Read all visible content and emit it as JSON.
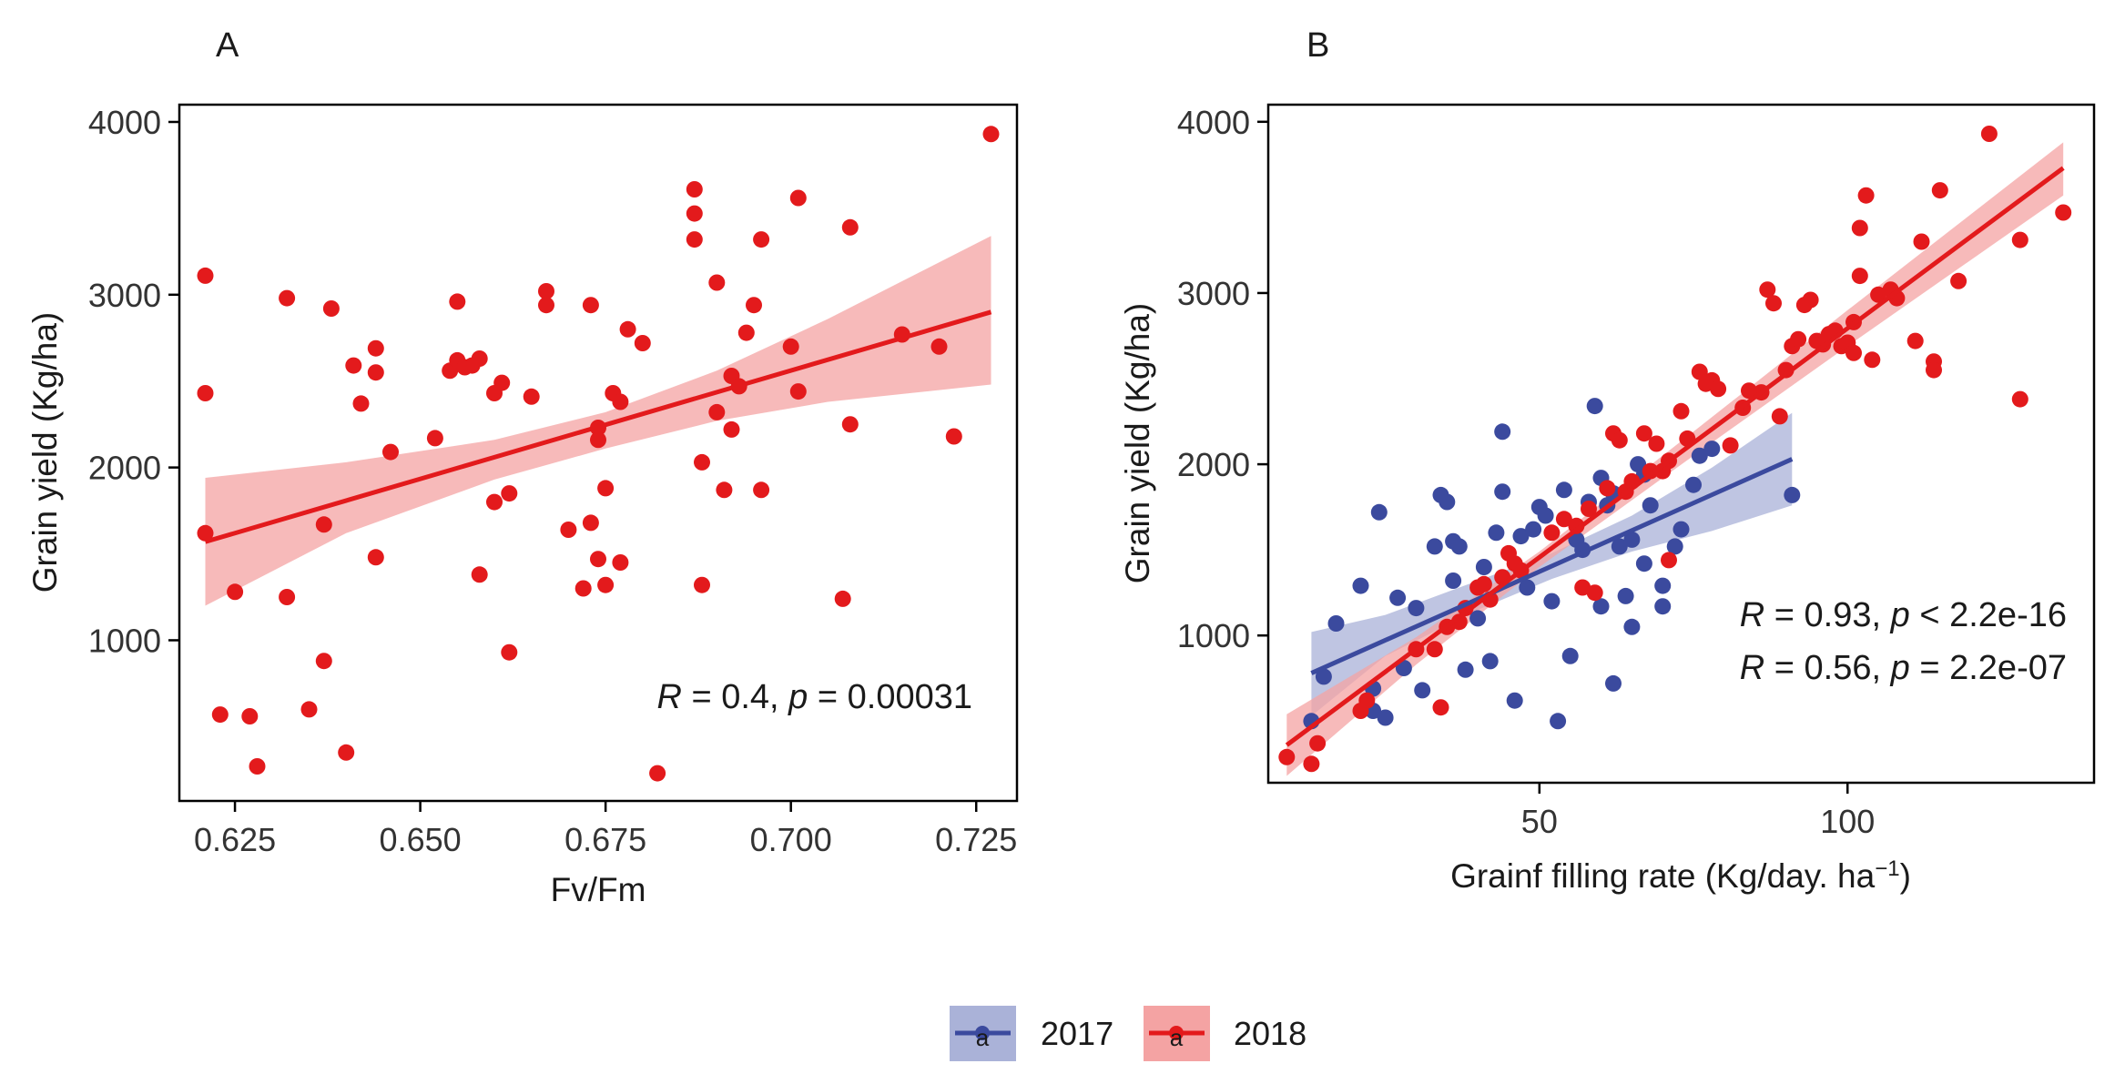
{
  "colors": {
    "2017": "#3b4a9e",
    "2018": "#e31a1c",
    "band_2017": "#aab2d8",
    "band_2018": "#f4a3a3",
    "axis": "#000000"
  },
  "legend": {
    "placement": "bottom-center",
    "items": [
      {
        "key": "2017",
        "label": "2017",
        "glyph": "a"
      },
      {
        "key": "2018",
        "label": "2018",
        "glyph": "a"
      }
    ]
  },
  "chart_data": [
    {
      "panel": "A",
      "type": "scatter",
      "xlabel": "Fv/Fm",
      "ylabel": "Grain yield (Kg/ha)",
      "xlim": [
        0.6175,
        0.7305
      ],
      "ylim": [
        70,
        4100
      ],
      "xticks": [
        0.625,
        0.65,
        0.675,
        0.7,
        0.725
      ],
      "xtick_labels": [
        "0.625",
        "0.650",
        "0.675",
        "0.700",
        "0.725"
      ],
      "yticks": [
        1000,
        2000,
        3000,
        4000
      ],
      "ytick_labels": [
        "1000",
        "2000",
        "3000",
        "4000"
      ],
      "annotation": {
        "R": "0.4",
        "p_op": "=",
        "p": "0.00031",
        "color": "#000000"
      },
      "series": [
        {
          "name": "2018",
          "fit": {
            "x0": 0.621,
            "y0": 1570,
            "x1": 0.727,
            "y1": 2900
          },
          "band": [
            {
              "x": 0.621,
              "lo": 1200,
              "hi": 1940
            },
            {
              "x": 0.64,
              "lo": 1620,
              "hi": 2030
            },
            {
              "x": 0.66,
              "lo": 1930,
              "hi": 2160
            },
            {
              "x": 0.675,
              "lo": 2110,
              "hi": 2320
            },
            {
              "x": 0.69,
              "lo": 2270,
              "hi": 2560
            },
            {
              "x": 0.705,
              "lo": 2380,
              "hi": 2860
            },
            {
              "x": 0.727,
              "lo": 2480,
              "hi": 3340
            }
          ],
          "points": [
            [
              0.621,
              3110
            ],
            [
              0.621,
              2430
            ],
            [
              0.621,
              1620
            ],
            [
              0.623,
              570
            ],
            [
              0.625,
              1280
            ],
            [
              0.627,
              560
            ],
            [
              0.628,
              270
            ],
            [
              0.632,
              2980
            ],
            [
              0.632,
              1250
            ],
            [
              0.635,
              600
            ],
            [
              0.637,
              1670
            ],
            [
              0.637,
              880
            ],
            [
              0.638,
              2920
            ],
            [
              0.64,
              350
            ],
            [
              0.641,
              2590
            ],
            [
              0.642,
              2370
            ],
            [
              0.644,
              2690
            ],
            [
              0.644,
              2550
            ],
            [
              0.644,
              1480
            ],
            [
              0.646,
              2090
            ],
            [
              0.652,
              2170
            ],
            [
              0.654,
              2560
            ],
            [
              0.655,
              2960
            ],
            [
              0.655,
              2620
            ],
            [
              0.656,
              2580
            ],
            [
              0.657,
              2590
            ],
            [
              0.658,
              2630
            ],
            [
              0.658,
              1380
            ],
            [
              0.66,
              2430
            ],
            [
              0.66,
              1800
            ],
            [
              0.661,
              2490
            ],
            [
              0.662,
              1850
            ],
            [
              0.662,
              930
            ],
            [
              0.665,
              2410
            ],
            [
              0.667,
              3020
            ],
            [
              0.667,
              2940
            ],
            [
              0.67,
              1640
            ],
            [
              0.672,
              1300
            ],
            [
              0.673,
              1680
            ],
            [
              0.673,
              2940
            ],
            [
              0.674,
              2230
            ],
            [
              0.674,
              2160
            ],
            [
              0.674,
              1470
            ],
            [
              0.675,
              1880
            ],
            [
              0.675,
              1320
            ],
            [
              0.676,
              2430
            ],
            [
              0.677,
              2380
            ],
            [
              0.677,
              1450
            ],
            [
              0.678,
              2800
            ],
            [
              0.68,
              2720
            ],
            [
              0.682,
              230
            ],
            [
              0.687,
              3610
            ],
            [
              0.687,
              3470
            ],
            [
              0.687,
              3320
            ],
            [
              0.688,
              2030
            ],
            [
              0.688,
              1320
            ],
            [
              0.69,
              2320
            ],
            [
              0.69,
              3070
            ],
            [
              0.691,
              1870
            ],
            [
              0.692,
              2220
            ],
            [
              0.692,
              2530
            ],
            [
              0.693,
              2470
            ],
            [
              0.694,
              2780
            ],
            [
              0.695,
              2940
            ],
            [
              0.696,
              3320
            ],
            [
              0.696,
              1870
            ],
            [
              0.7,
              2700
            ],
            [
              0.701,
              3560
            ],
            [
              0.701,
              2440
            ],
            [
              0.708,
              3390
            ],
            [
              0.708,
              2250
            ],
            [
              0.707,
              1240
            ],
            [
              0.715,
              2770
            ],
            [
              0.72,
              2700
            ],
            [
              0.722,
              2180
            ],
            [
              0.727,
              3930
            ]
          ]
        }
      ]
    },
    {
      "panel": "B",
      "type": "scatter",
      "xlabel": "Grainf filling rate (Kg/day. ha",
      "xlabel_sup": "−1",
      "xlabel_suffix": ")",
      "ylabel": "Grain yield (Kg/ha)",
      "xlim": [
        6,
        140
      ],
      "ylim": [
        140,
        4100
      ],
      "xticks": [
        50,
        100
      ],
      "xtick_labels": [
        "50",
        "100"
      ],
      "yticks": [
        1000,
        2000,
        3000,
        4000
      ],
      "ytick_labels": [
        "1000",
        "2000",
        "3000",
        "4000"
      ],
      "annotations": [
        {
          "key": "2018",
          "R": "0.93",
          "p_op": "<",
          "p": "2.2e-16",
          "color": "#e31a1c"
        },
        {
          "key": "2017",
          "R": "0.56",
          "p_op": "=",
          "p": "2.2e-07",
          "color": "#3b4a9e"
        }
      ],
      "series": [
        {
          "name": "2017",
          "fit": {
            "x0": 13,
            "y0": 780,
            "x1": 91,
            "y1": 2030
          },
          "band": [
            {
              "x": 13,
              "lo": 530,
              "hi": 1020
            },
            {
              "x": 25,
              "lo": 880,
              "hi": 1120
            },
            {
              "x": 40,
              "lo": 1150,
              "hi": 1320
            },
            {
              "x": 52,
              "lo": 1330,
              "hi": 1480
            },
            {
              "x": 65,
              "lo": 1490,
              "hi": 1700
            },
            {
              "x": 78,
              "lo": 1610,
              "hi": 1980
            },
            {
              "x": 91,
              "lo": 1760,
              "hi": 2300
            }
          ],
          "points": [
            [
              13,
              500
            ],
            [
              15,
              760
            ],
            [
              17,
              1070
            ],
            [
              21,
              1290
            ],
            [
              23,
              690
            ],
            [
              23,
              560
            ],
            [
              24,
              1720
            ],
            [
              25,
              520
            ],
            [
              27,
              1220
            ],
            [
              28,
              810
            ],
            [
              30,
              1160
            ],
            [
              31,
              680
            ],
            [
              33,
              1520
            ],
            [
              34,
              1820
            ],
            [
              35,
              1780
            ],
            [
              36,
              1550
            ],
            [
              36,
              1320
            ],
            [
              37,
              1520
            ],
            [
              38,
              800
            ],
            [
              40,
              1100
            ],
            [
              41,
              1400
            ],
            [
              42,
              850
            ],
            [
              43,
              1600
            ],
            [
              44,
              2190
            ],
            [
              44,
              1840
            ],
            [
              46,
              620
            ],
            [
              47,
              1580
            ],
            [
              48,
              1280
            ],
            [
              49,
              1620
            ],
            [
              50,
              1750
            ],
            [
              51,
              1700
            ],
            [
              52,
              1200
            ],
            [
              53,
              500
            ],
            [
              54,
              1850
            ],
            [
              55,
              880
            ],
            [
              56,
              1560
            ],
            [
              57,
              1500
            ],
            [
              58,
              1780
            ],
            [
              59,
              2340
            ],
            [
              60,
              1920
            ],
            [
              60,
              1170
            ],
            [
              61,
              1760
            ],
            [
              62,
              1830
            ],
            [
              62,
              720
            ],
            [
              63,
              1520
            ],
            [
              64,
              1230
            ],
            [
              65,
              1050
            ],
            [
              65,
              1560
            ],
            [
              66,
              2000
            ],
            [
              67,
              1940
            ],
            [
              67,
              1420
            ],
            [
              68,
              1760
            ],
            [
              70,
              1290
            ],
            [
              70,
              1170
            ],
            [
              72,
              1520
            ],
            [
              73,
              1620
            ],
            [
              75,
              1880
            ],
            [
              76,
              2050
            ],
            [
              78,
              2090
            ],
            [
              91,
              1820
            ]
          ]
        },
        {
          "name": "2018",
          "fit": {
            "x0": 9,
            "y0": 360,
            "x1": 135,
            "y1": 3730
          },
          "band": [
            {
              "x": 9,
              "lo": 180,
              "hi": 540
            },
            {
              "x": 30,
              "lo": 830,
              "hi": 990
            },
            {
              "x": 50,
              "lo": 1400,
              "hi": 1490
            },
            {
              "x": 75,
              "lo": 2050,
              "hi": 2190
            },
            {
              "x": 100,
              "lo": 2690,
              "hi": 2900
            },
            {
              "x": 135,
              "lo": 3570,
              "hi": 3880
            }
          ],
          "points": [
            [
              9,
              290
            ],
            [
              13,
              250
            ],
            [
              14,
              370
            ],
            [
              21,
              560
            ],
            [
              22,
              620
            ],
            [
              30,
              920
            ],
            [
              33,
              920
            ],
            [
              34,
              580
            ],
            [
              35,
              1050
            ],
            [
              37,
              1080
            ],
            [
              38,
              1160
            ],
            [
              40,
              1280
            ],
            [
              41,
              1300
            ],
            [
              42,
              1210
            ],
            [
              44,
              1340
            ],
            [
              45,
              1480
            ],
            [
              46,
              1420
            ],
            [
              47,
              1380
            ],
            [
              52,
              1600
            ],
            [
              54,
              1680
            ],
            [
              56,
              1640
            ],
            [
              57,
              1280
            ],
            [
              58,
              1740
            ],
            [
              59,
              1250
            ],
            [
              61,
              1860
            ],
            [
              62,
              2180
            ],
            [
              63,
              2140
            ],
            [
              64,
              1840
            ],
            [
              65,
              1900
            ],
            [
              67,
              2180
            ],
            [
              68,
              1960
            ],
            [
              69,
              2120
            ],
            [
              70,
              1960
            ],
            [
              71,
              2020
            ],
            [
              71,
              1440
            ],
            [
              73,
              2310
            ],
            [
              74,
              2150
            ],
            [
              76,
              2540
            ],
            [
              77,
              2470
            ],
            [
              78,
              2490
            ],
            [
              79,
              2440
            ],
            [
              81,
              2110
            ],
            [
              83,
              2330
            ],
            [
              84,
              2430
            ],
            [
              86,
              2420
            ],
            [
              87,
              3020
            ],
            [
              88,
              2940
            ],
            [
              89,
              2280
            ],
            [
              90,
              2550
            ],
            [
              91,
              2690
            ],
            [
              92,
              2730
            ],
            [
              93,
              2930
            ],
            [
              94,
              2960
            ],
            [
              95,
              2720
            ],
            [
              96,
              2700
            ],
            [
              97,
              2760
            ],
            [
              98,
              2780
            ],
            [
              99,
              2690
            ],
            [
              100,
              2710
            ],
            [
              101,
              2830
            ],
            [
              101,
              2650
            ],
            [
              102,
              3380
            ],
            [
              102,
              3100
            ],
            [
              103,
              3570
            ],
            [
              104,
              2610
            ],
            [
              105,
              2990
            ],
            [
              107,
              3020
            ],
            [
              108,
              2970
            ],
            [
              111,
              2720
            ],
            [
              112,
              3300
            ],
            [
              114,
              2600
            ],
            [
              114,
              2550
            ],
            [
              115,
              3600
            ],
            [
              118,
              3070
            ],
            [
              123,
              3930
            ],
            [
              128,
              2380
            ],
            [
              128,
              3310
            ],
            [
              135,
              3470
            ]
          ]
        }
      ]
    }
  ]
}
